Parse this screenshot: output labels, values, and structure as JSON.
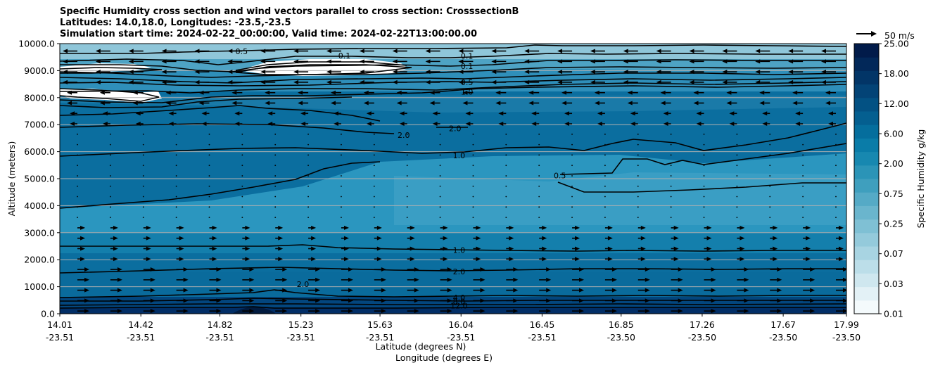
{
  "chart_data": {
    "type": "contour",
    "title_lines": [
      "Specific Humidity cross section and wind vectors parallel to cross section: CrosssectionB",
      "Latitudes: 14.0,18.0, Longitudes: -23.5,-23.5",
      "Simulation start time: 2024-02-22_00:00:00, Valid time: 2024-02-22T13:00:00.00"
    ],
    "ylabel": "Altitude (meters)",
    "xlabel_lat": "Latitude (degrees N)",
    "xlabel_lon": "Longitude (degrees E)",
    "ylim": [
      0,
      10000
    ],
    "yticks": [
      "0.0",
      "1000.0",
      "2000.0",
      "3000.0",
      "4000.0",
      "5000.0",
      "6000.0",
      "7000.0",
      "8000.0",
      "9000.0",
      "10000.0"
    ],
    "xticks_lat": [
      "14.01",
      "14.42",
      "14.82",
      "15.23",
      "15.63",
      "16.04",
      "16.45",
      "16.85",
      "17.26",
      "17.67",
      "17.99"
    ],
    "xticks_lon": [
      "-23.51",
      "-23.51",
      "-23.51",
      "-23.51",
      "-23.51",
      "-23.51",
      "-23.51",
      "-23.50",
      "-23.50",
      "-23.50",
      "-23.50"
    ],
    "colorbar_label": "Specific Humidity g/kg",
    "colorbar_ticks": [
      "0.01",
      "0.03",
      "0.07",
      "0.25",
      "0.75",
      "2.00",
      "6.00",
      "12.00",
      "18.00",
      "25.00"
    ],
    "quiver_key": "50 m/s",
    "contour_labels": [
      {
        "text": "0.1",
        "lat": 15.45,
        "alt": 9550
      },
      {
        "text": "0.1",
        "lat": 16.07,
        "alt": 9530
      },
      {
        "text": "0.1",
        "lat": 16.07,
        "alt": 9150
      },
      {
        "text": "0.5",
        "lat": 16.07,
        "alt": 8550
      },
      {
        "text": "1.0",
        "lat": 16.07,
        "alt": 8200
      },
      {
        "text": "0.5",
        "lat": 14.93,
        "alt": 9700
      },
      {
        "text": "2.0",
        "lat": 16.01,
        "alt": 6850
      },
      {
        "text": "2.0",
        "lat": 15.75,
        "alt": 6600
      },
      {
        "text": "1.0",
        "lat": 16.03,
        "alt": 5850
      },
      {
        "text": "0.5",
        "lat": 16.54,
        "alt": 5100
      },
      {
        "text": "1.0",
        "lat": 16.03,
        "alt": 2350
      },
      {
        "text": "2.0",
        "lat": 16.03,
        "alt": 1550
      },
      {
        "text": "2.0",
        "lat": 15.24,
        "alt": 1080
      },
      {
        "text": "4.0",
        "lat": 16.03,
        "alt": 580
      },
      {
        "text": "8.0",
        "lat": 16.03,
        "alt": 440
      },
      {
        "text": "12.0",
        "lat": 16.03,
        "alt": 280
      }
    ]
  }
}
